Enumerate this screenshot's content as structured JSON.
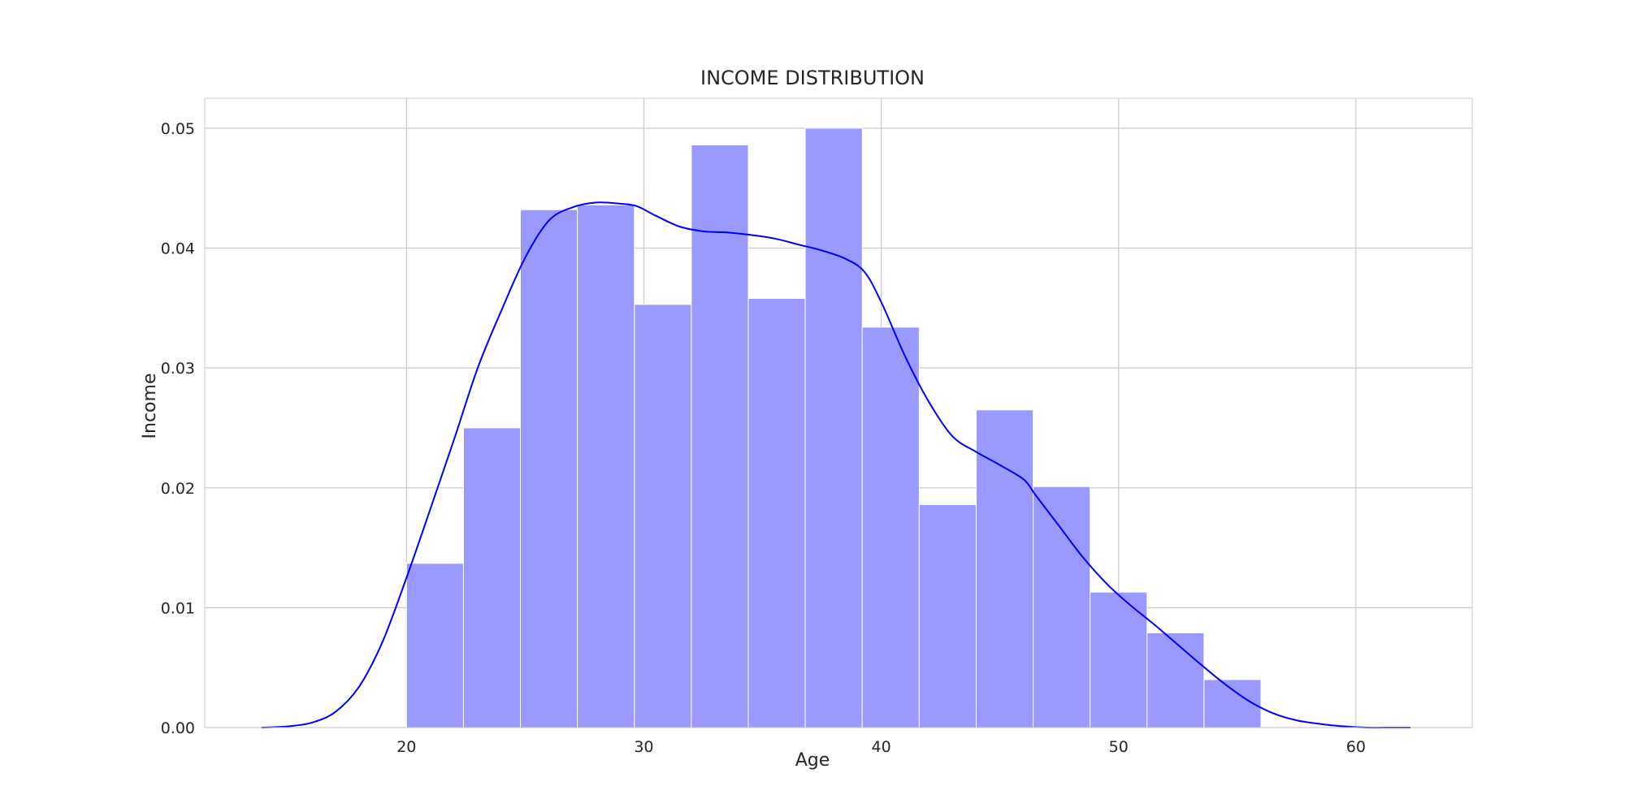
{
  "chart_data": {
    "type": "bar",
    "title": "INCOME DISTRIBUTION",
    "xlabel": "Age",
    "ylabel": "Income",
    "xlim": [
      11.5,
      64.9
    ],
    "ylim": [
      0,
      0.0525
    ],
    "xticks": [
      20,
      30,
      40,
      50,
      60
    ],
    "yticks": [
      0.0,
      0.01,
      0.02,
      0.03,
      0.04,
      0.05
    ],
    "xtick_labels": [
      "20",
      "30",
      "40",
      "50",
      "60"
    ],
    "ytick_labels": [
      "0.00",
      "0.01",
      "0.02",
      "0.03",
      "0.04",
      "0.05"
    ],
    "grid": true,
    "bar_color": "#9999ff",
    "bar_edge_color": "#ffffff",
    "line_color": "#0000ff",
    "grid_color": "#cccccc",
    "bins": [
      {
        "x0": 20.0,
        "x1": 22.4,
        "value": 0.0137
      },
      {
        "x0": 22.4,
        "x1": 24.8,
        "value": 0.025
      },
      {
        "x0": 24.8,
        "x1": 27.2,
        "value": 0.0432
      },
      {
        "x0": 27.2,
        "x1": 29.6,
        "value": 0.0436
      },
      {
        "x0": 29.6,
        "x1": 32.0,
        "value": 0.0353
      },
      {
        "x0": 32.0,
        "x1": 34.4,
        "value": 0.0486
      },
      {
        "x0": 34.4,
        "x1": 36.8,
        "value": 0.0358
      },
      {
        "x0": 36.8,
        "x1": 39.2,
        "value": 0.05
      },
      {
        "x0": 39.2,
        "x1": 41.6,
        "value": 0.0334
      },
      {
        "x0": 41.6,
        "x1": 44.0,
        "value": 0.0186
      },
      {
        "x0": 44.0,
        "x1": 46.4,
        "value": 0.0265
      },
      {
        "x0": 46.4,
        "x1": 48.8,
        "value": 0.0201
      },
      {
        "x0": 48.8,
        "x1": 51.2,
        "value": 0.0113
      },
      {
        "x0": 51.2,
        "x1": 53.6,
        "value": 0.0079
      },
      {
        "x0": 53.6,
        "x1": 56.0,
        "value": 0.004
      }
    ],
    "kde": {
      "x": [
        13.9,
        15.0,
        16.0,
        17.0,
        18.0,
        19.0,
        20.0,
        21.0,
        22.0,
        23.0,
        24.0,
        25.0,
        26.0,
        27.0,
        28.0,
        29.0,
        29.7,
        30.5,
        31.5,
        32.5,
        33.5,
        34.5,
        35.5,
        36.5,
        37.5,
        38.5,
        39.3,
        40.0,
        41.0,
        42.0,
        43.0,
        44.0,
        45.0,
        46.0,
        46.5,
        47.5,
        48.5,
        49.5,
        50.5,
        51.5,
        52.5,
        53.5,
        54.5,
        55.5,
        56.5,
        57.5,
        58.5,
        59.5,
        60.5,
        61.5,
        62.3
      ],
      "y": [
        0.0,
        0.0001,
        0.0004,
        0.0013,
        0.0034,
        0.0072,
        0.0125,
        0.0182,
        0.024,
        0.03,
        0.0348,
        0.0392,
        0.0423,
        0.0434,
        0.0438,
        0.0437,
        0.0435,
        0.0427,
        0.0418,
        0.0414,
        0.0413,
        0.0411,
        0.0408,
        0.0403,
        0.0398,
        0.0391,
        0.038,
        0.0355,
        0.031,
        0.0272,
        0.0243,
        0.023,
        0.0219,
        0.0207,
        0.0194,
        0.0168,
        0.0142,
        0.012,
        0.0102,
        0.0086,
        0.0069,
        0.0052,
        0.0036,
        0.0022,
        0.0012,
        0.0006,
        0.0003,
        0.0001,
        0.0,
        0.0,
        0.0
      ]
    }
  }
}
